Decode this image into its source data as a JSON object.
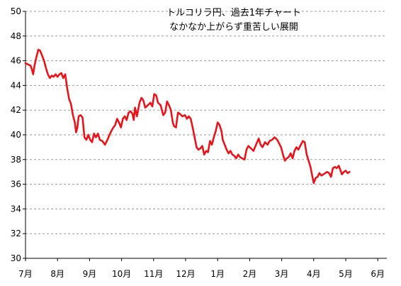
{
  "chart_data": {
    "type": "line",
    "title_lines": [
      "トルコリラ円、過去1年チャート",
      "なかなか上がらず重苦しい展開"
    ],
    "xlabel": "",
    "ylabel": "",
    "ylim": [
      30,
      50
    ],
    "y_ticks": [
      30,
      32,
      34,
      36,
      38,
      40,
      42,
      44,
      46,
      48,
      50
    ],
    "x_ticks": [
      {
        "label": "7月",
        "x": 0
      },
      {
        "label": "8月",
        "x": 1
      },
      {
        "label": "9月",
        "x": 2
      },
      {
        "label": "10月",
        "x": 3
      },
      {
        "label": "11月",
        "x": 4
      },
      {
        "label": "12月",
        "x": 5
      },
      {
        "label": "1月",
        "x": 6
      },
      {
        "label": "2月",
        "x": 7
      },
      {
        "label": "3月",
        "x": 8
      },
      {
        "label": "4月",
        "x": 9
      },
      {
        "label": "5月",
        "x": 10
      },
      {
        "label": "6月",
        "x": 11
      }
    ],
    "xlim": [
      0,
      11.4
    ],
    "grid": true,
    "series": [
      {
        "color": "#e8141a",
        "points": [
          [
            0.0,
            45.8
          ],
          [
            0.08,
            45.7
          ],
          [
            0.16,
            45.6
          ],
          [
            0.2,
            45.3
          ],
          [
            0.24,
            44.9
          ],
          [
            0.28,
            45.6
          ],
          [
            0.34,
            46.3
          ],
          [
            0.4,
            46.9
          ],
          [
            0.46,
            46.8
          ],
          [
            0.52,
            46.4
          ],
          [
            0.58,
            46.0
          ],
          [
            0.64,
            45.4
          ],
          [
            0.7,
            44.9
          ],
          [
            0.76,
            44.6
          ],
          [
            0.82,
            44.8
          ],
          [
            0.88,
            44.7
          ],
          [
            0.94,
            44.9
          ],
          [
            1.0,
            44.7
          ],
          [
            1.06,
            44.9
          ],
          [
            1.12,
            45.0
          ],
          [
            1.18,
            44.6
          ],
          [
            1.24,
            44.9
          ],
          [
            1.3,
            43.8
          ],
          [
            1.36,
            42.9
          ],
          [
            1.42,
            42.5
          ],
          [
            1.48,
            41.6
          ],
          [
            1.54,
            41.0
          ],
          [
            1.58,
            40.2
          ],
          [
            1.62,
            40.6
          ],
          [
            1.66,
            41.5
          ],
          [
            1.72,
            41.6
          ],
          [
            1.78,
            41.4
          ],
          [
            1.84,
            39.8
          ],
          [
            1.9,
            39.6
          ],
          [
            1.96,
            40.0
          ],
          [
            2.02,
            39.6
          ],
          [
            2.08,
            39.4
          ],
          [
            2.14,
            40.1
          ],
          [
            2.2,
            39.8
          ],
          [
            2.26,
            40.1
          ],
          [
            2.32,
            39.6
          ],
          [
            2.4,
            39.5
          ],
          [
            2.48,
            39.2
          ],
          [
            2.56,
            39.6
          ],
          [
            2.64,
            40.1
          ],
          [
            2.72,
            40.5
          ],
          [
            2.8,
            40.8
          ],
          [
            2.86,
            41.3
          ],
          [
            2.92,
            41.0
          ],
          [
            2.98,
            40.6
          ],
          [
            3.04,
            41.3
          ],
          [
            3.1,
            41.5
          ],
          [
            3.16,
            41.2
          ],
          [
            3.22,
            41.8
          ],
          [
            3.28,
            41.9
          ],
          [
            3.34,
            41.7
          ],
          [
            3.38,
            41.2
          ],
          [
            3.42,
            42.2
          ],
          [
            3.48,
            41.5
          ],
          [
            3.56,
            42.6
          ],
          [
            3.62,
            43.0
          ],
          [
            3.68,
            42.8
          ],
          [
            3.74,
            42.2
          ],
          [
            3.82,
            42.4
          ],
          [
            3.9,
            42.6
          ],
          [
            3.96,
            42.3
          ],
          [
            4.02,
            43.3
          ],
          [
            4.08,
            43.2
          ],
          [
            4.14,
            42.6
          ],
          [
            4.22,
            42.4
          ],
          [
            4.3,
            41.6
          ],
          [
            4.36,
            41.8
          ],
          [
            4.42,
            42.7
          ],
          [
            4.48,
            42.4
          ],
          [
            4.54,
            42.0
          ],
          [
            4.6,
            41.0
          ],
          [
            4.64,
            40.7
          ],
          [
            4.7,
            40.6
          ],
          [
            4.76,
            41.8
          ],
          [
            4.82,
            41.7
          ],
          [
            4.9,
            41.5
          ],
          [
            4.98,
            41.6
          ],
          [
            5.04,
            41.3
          ],
          [
            5.1,
            41.5
          ],
          [
            5.16,
            41.3
          ],
          [
            5.22,
            40.6
          ],
          [
            5.28,
            39.8
          ],
          [
            5.34,
            39.0
          ],
          [
            5.4,
            38.8
          ],
          [
            5.46,
            38.9
          ],
          [
            5.52,
            39.1
          ],
          [
            5.58,
            38.4
          ],
          [
            5.64,
            38.7
          ],
          [
            5.7,
            38.6
          ],
          [
            5.76,
            39.5
          ],
          [
            5.82,
            39.2
          ],
          [
            5.88,
            39.8
          ],
          [
            5.94,
            40.3
          ],
          [
            6.0,
            41.0
          ],
          [
            6.06,
            40.8
          ],
          [
            6.12,
            40.3
          ],
          [
            6.16,
            39.6
          ],
          [
            6.22,
            39.2
          ],
          [
            6.28,
            38.8
          ],
          [
            6.34,
            38.5
          ],
          [
            6.4,
            38.7
          ],
          [
            6.46,
            38.4
          ],
          [
            6.52,
            38.3
          ],
          [
            6.58,
            38.1
          ],
          [
            6.64,
            38.4
          ],
          [
            6.7,
            38.2
          ],
          [
            6.76,
            38.1
          ],
          [
            6.84,
            38.0
          ],
          [
            6.9,
            38.8
          ],
          [
            6.96,
            39.1
          ],
          [
            7.04,
            38.9
          ],
          [
            7.12,
            38.7
          ],
          [
            7.2,
            39.2
          ],
          [
            7.28,
            39.7
          ],
          [
            7.34,
            39.2
          ],
          [
            7.4,
            39.0
          ],
          [
            7.48,
            39.4
          ],
          [
            7.56,
            39.2
          ],
          [
            7.62,
            39.5
          ],
          [
            7.7,
            39.6
          ],
          [
            7.78,
            39.8
          ],
          [
            7.86,
            39.6
          ],
          [
            7.92,
            39.3
          ],
          [
            7.98,
            39.0
          ],
          [
            8.04,
            38.4
          ],
          [
            8.1,
            37.9
          ],
          [
            8.16,
            38.1
          ],
          [
            8.22,
            38.2
          ],
          [
            8.28,
            38.5
          ],
          [
            8.34,
            38.1
          ],
          [
            8.4,
            38.7
          ],
          [
            8.46,
            39.0
          ],
          [
            8.52,
            38.8
          ],
          [
            8.6,
            39.2
          ],
          [
            8.66,
            39.5
          ],
          [
            8.72,
            39.4
          ],
          [
            8.78,
            38.4
          ],
          [
            8.84,
            37.9
          ],
          [
            8.9,
            37.4
          ],
          [
            8.96,
            36.6
          ],
          [
            9.0,
            36.1
          ],
          [
            9.06,
            36.5
          ],
          [
            9.12,
            36.6
          ],
          [
            9.18,
            36.9
          ],
          [
            9.24,
            36.7
          ],
          [
            9.3,
            36.8
          ],
          [
            9.36,
            36.9
          ],
          [
            9.42,
            37.0
          ],
          [
            9.48,
            36.9
          ],
          [
            9.54,
            36.6
          ],
          [
            9.6,
            37.3
          ],
          [
            9.66,
            37.4
          ],
          [
            9.72,
            37.3
          ],
          [
            9.78,
            37.5
          ],
          [
            9.84,
            37.1
          ],
          [
            9.88,
            36.8
          ],
          [
            9.94,
            37.0
          ],
          [
            10.0,
            37.1
          ],
          [
            10.06,
            36.9
          ],
          [
            10.12,
            37.0
          ]
        ]
      }
    ]
  }
}
